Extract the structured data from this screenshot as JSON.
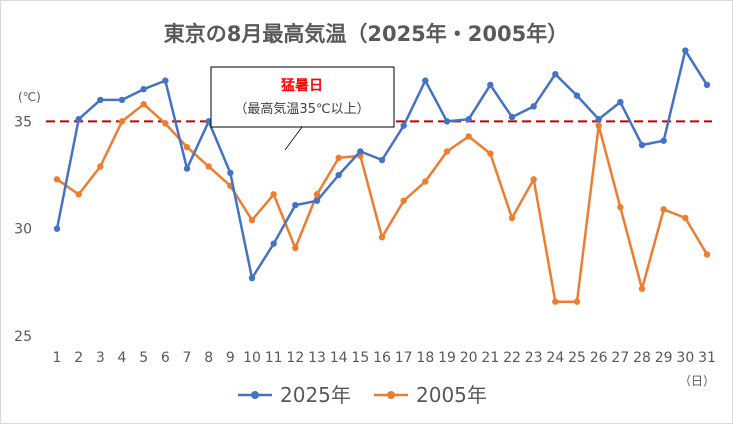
{
  "chart_data": {
    "type": "line",
    "title": "東京の8月最高気温（2025年・2005年）",
    "xlabel": "",
    "ylabel": "",
    "y_unit_label": "(℃)",
    "x_unit_label": "（日）",
    "ylim": [
      25,
      38
    ],
    "yticks": [
      25,
      30,
      35
    ],
    "grid": false,
    "legend_position": "bottom",
    "categories": [
      "1",
      "2",
      "3",
      "4",
      "5",
      "6",
      "7",
      "8",
      "9",
      "10",
      "11",
      "12",
      "13",
      "14",
      "15",
      "16",
      "17",
      "18",
      "19",
      "20",
      "21",
      "22",
      "23",
      "24",
      "25",
      "26",
      "27",
      "28",
      "29",
      "30",
      "31"
    ],
    "series": [
      {
        "name": "2025年",
        "color": "#4472c4",
        "values": [
          30.0,
          35.1,
          36.0,
          36.0,
          36.5,
          36.9,
          32.8,
          35.0,
          32.6,
          27.7,
          29.3,
          31.1,
          31.3,
          32.5,
          33.6,
          33.2,
          34.8,
          36.9,
          35.0,
          35.1,
          36.7,
          35.2,
          35.7,
          37.2,
          36.2,
          35.1,
          35.9,
          33.9,
          34.1,
          38.3,
          36.7
        ]
      },
      {
        "name": "2005年",
        "color": "#ed7d31",
        "values": [
          32.3,
          31.6,
          32.9,
          35.0,
          35.8,
          34.9,
          33.8,
          32.9,
          32.0,
          30.4,
          31.6,
          29.1,
          31.6,
          33.3,
          33.4,
          29.6,
          31.3,
          32.2,
          33.6,
          34.3,
          33.5,
          30.5,
          32.3,
          26.6,
          26.6,
          34.8,
          31.0,
          27.2,
          30.9,
          30.5,
          28.8
        ]
      }
    ],
    "reference_line": {
      "value": 35,
      "color": "#c00000",
      "style": "dashed"
    },
    "annotation": {
      "title": "猛暑日",
      "subtitle": "（最高気温35℃以上）",
      "title_color": "#ff0000"
    }
  }
}
